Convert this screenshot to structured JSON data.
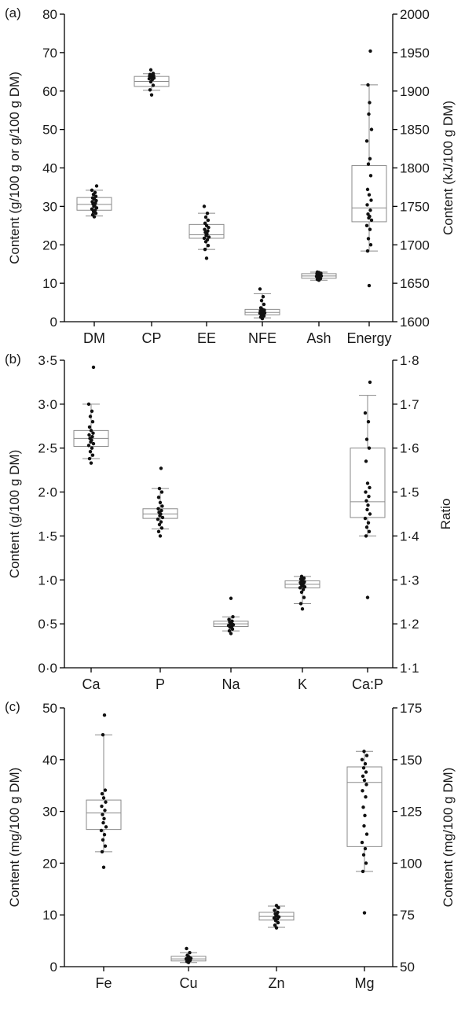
{
  "chart_data": [
    {
      "type": "box",
      "panel": "(a)",
      "left_axis": {
        "label": "Content (g/100 g or g/100 g DM)",
        "ylim": [
          0,
          80
        ],
        "ticks": [
          "0",
          "10",
          "20",
          "30",
          "40",
          "50",
          "60",
          "70",
          "80"
        ]
      },
      "right_axis": {
        "label": "Content (kJ/100 g DM)",
        "ylim": [
          1600,
          2000
        ],
        "ticks": [
          "1600",
          "1650",
          "1700",
          "1750",
          "1800",
          "1850",
          "1900",
          "1950",
          "2000"
        ]
      },
      "categories": [
        "DM",
        "CP",
        "EE",
        "NFE",
        "Ash",
        "Energy"
      ],
      "boxes": [
        {
          "category": "DM",
          "axis": "left",
          "min": 27.5,
          "q1": 29.0,
          "median": 30.5,
          "q3": 32.3,
          "max": 34.2,
          "points": [
            27.3,
            27.8,
            28.2,
            28.6,
            29.0,
            29.3,
            29.6,
            30.0,
            30.3,
            30.6,
            30.9,
            31.2,
            31.5,
            31.9,
            32.2,
            32.6,
            33.1,
            33.6,
            34.2,
            35.3
          ]
        },
        {
          "category": "CP",
          "axis": "left",
          "min": 60.2,
          "q1": 61.2,
          "median": 62.5,
          "q3": 63.8,
          "max": 64.5,
          "points": [
            59.0,
            60.3,
            61.5,
            62.4,
            63.0,
            63.2,
            63.4,
            63.5,
            63.6,
            63.7,
            63.8,
            63.9,
            64.0,
            64.1,
            64.3,
            64.6,
            65.5
          ]
        },
        {
          "category": "EE",
          "axis": "left",
          "min": 18.8,
          "q1": 21.7,
          "median": 22.6,
          "q3": 25.3,
          "max": 28.2,
          "points": [
            16.5,
            18.8,
            19.8,
            20.8,
            21.3,
            21.7,
            22.0,
            22.4,
            22.8,
            23.2,
            23.6,
            24.0,
            24.5,
            25.0,
            25.6,
            26.4,
            27.2,
            28.2,
            30.0
          ]
        },
        {
          "category": "NFE",
          "axis": "left",
          "min": 1.0,
          "q1": 1.8,
          "median": 2.4,
          "q3": 3.2,
          "max": 7.3,
          "points": [
            0.8,
            1.2,
            1.5,
            1.8,
            2.0,
            2.2,
            2.3,
            2.4,
            2.5,
            2.6,
            2.7,
            2.8,
            3.0,
            3.2,
            3.6,
            4.5,
            5.5,
            6.5,
            8.5
          ]
        },
        {
          "category": "Ash",
          "axis": "left",
          "min": 10.8,
          "q1": 11.3,
          "median": 11.9,
          "q3": 12.5,
          "max": 12.9,
          "points": [
            10.8,
            11.0,
            11.2,
            11.4,
            11.6,
            11.8,
            11.9,
            12.0,
            12.1,
            12.2,
            12.3,
            12.5,
            12.6,
            12.8,
            12.9
          ]
        },
        {
          "category": "Energy",
          "axis": "right",
          "min": 1692,
          "q1": 1730,
          "median": 1748,
          "q3": 1803,
          "max": 1908,
          "points": [
            1647,
            1692,
            1700,
            1708,
            1720,
            1725,
            1732,
            1735,
            1737,
            1740,
            1745,
            1752,
            1758,
            1765,
            1772,
            1790,
            1805,
            1812,
            1835,
            1850,
            1870,
            1885,
            1908,
            1952
          ]
        }
      ]
    },
    {
      "type": "box",
      "panel": "(b)",
      "left_axis": {
        "label": "Content (g/100 g DM)",
        "ylim": [
          0,
          3.5
        ],
        "ticks": [
          "0·0",
          "0·5",
          "1·0",
          "1·5",
          "2·0",
          "2·5",
          "3·0",
          "3·5"
        ]
      },
      "right_axis": {
        "label": "Ratio",
        "ylim": [
          1.1,
          1.8
        ],
        "ticks": [
          "1·1",
          "1·2",
          "1·3",
          "1·4",
          "1·5",
          "1·6",
          "1·7",
          "1·8"
        ]
      },
      "categories": [
        "Ca",
        "P",
        "Na",
        "K",
        "Ca:P"
      ],
      "boxes": [
        {
          "category": "Ca",
          "axis": "left",
          "min": 2.38,
          "q1": 2.52,
          "median": 2.61,
          "q3": 2.7,
          "max": 3.0,
          "points": [
            2.33,
            2.38,
            2.42,
            2.46,
            2.5,
            2.53,
            2.55,
            2.57,
            2.59,
            2.61,
            2.63,
            2.65,
            2.67,
            2.7,
            2.74,
            2.8,
            2.86,
            2.92,
            3.0,
            3.42
          ]
        },
        {
          "category": "P",
          "axis": "left",
          "min": 1.58,
          "q1": 1.7,
          "median": 1.75,
          "q3": 1.81,
          "max": 2.04,
          "points": [
            1.5,
            1.55,
            1.59,
            1.63,
            1.66,
            1.69,
            1.71,
            1.73,
            1.75,
            1.77,
            1.79,
            1.81,
            1.84,
            1.88,
            1.94,
            2.0,
            2.04,
            2.27
          ]
        },
        {
          "category": "Na",
          "axis": "left",
          "min": 0.42,
          "q1": 0.47,
          "median": 0.5,
          "q3": 0.53,
          "max": 0.58,
          "points": [
            0.39,
            0.42,
            0.44,
            0.46,
            0.47,
            0.48,
            0.49,
            0.5,
            0.51,
            0.52,
            0.53,
            0.55,
            0.58,
            0.79
          ]
        },
        {
          "category": "K",
          "axis": "left",
          "min": 0.73,
          "q1": 0.91,
          "median": 0.95,
          "q3": 0.99,
          "max": 1.04,
          "points": [
            0.67,
            0.73,
            0.8,
            0.86,
            0.89,
            0.91,
            0.92,
            0.93,
            0.94,
            0.95,
            0.96,
            0.97,
            0.98,
            0.99,
            1.01,
            1.02,
            1.04
          ]
        },
        {
          "category": "Ca:P",
          "axis": "right",
          "min": 1.4,
          "q1": 1.442,
          "median": 1.478,
          "q3": 1.6,
          "max": 1.72,
          "points": [
            1.26,
            1.4,
            1.41,
            1.42,
            1.43,
            1.44,
            1.45,
            1.46,
            1.47,
            1.48,
            1.49,
            1.5,
            1.51,
            1.52,
            1.57,
            1.6,
            1.62,
            1.66,
            1.68,
            1.75
          ]
        }
      ]
    },
    {
      "type": "box",
      "panel": "(c)",
      "left_axis": {
        "label": "Content (mg/100 g DM)",
        "ylim": [
          0,
          50
        ],
        "ticks": [
          "0",
          "10",
          "20",
          "30",
          "40",
          "50"
        ]
      },
      "right_axis": {
        "label": "Content (mg/100 g DM)",
        "ylim": [
          50,
          175
        ],
        "ticks": [
          "50",
          "75",
          "100",
          "125",
          "150",
          "175"
        ]
      },
      "categories": [
        "Fe",
        "Cu",
        "Zn",
        "Mg"
      ],
      "boxes": [
        {
          "category": "Fe",
          "axis": "left",
          "min": 22.2,
          "q1": 26.5,
          "median": 29.7,
          "q3": 32.2,
          "max": 44.8,
          "points": [
            19.2,
            22.2,
            23.3,
            24.5,
            25.5,
            26.3,
            27.0,
            27.8,
            28.6,
            29.4,
            30.2,
            31.0,
            31.8,
            32.6,
            33.4,
            34.1,
            44.8,
            48.6
          ]
        },
        {
          "category": "Cu",
          "axis": "left",
          "min": 0.8,
          "q1": 1.1,
          "median": 1.5,
          "q3": 2.0,
          "max": 2.7,
          "points": [
            0.8,
            1.0,
            1.2,
            1.3,
            1.4,
            1.5,
            1.6,
            1.7,
            1.9,
            2.2,
            2.7,
            3.5
          ]
        },
        {
          "category": "Zn",
          "axis": "left",
          "min": 7.6,
          "q1": 9.0,
          "median": 9.7,
          "q3": 10.5,
          "max": 11.7,
          "points": [
            7.5,
            8.0,
            8.5,
            8.9,
            9.2,
            9.4,
            9.6,
            9.8,
            10.0,
            10.2,
            10.5,
            10.9,
            11.4,
            11.8
          ]
        },
        {
          "category": "Mg",
          "axis": "right",
          "min": 96,
          "q1": 108,
          "median": 139,
          "q3": 146.5,
          "max": 154,
          "points": [
            76,
            96,
            100,
            104,
            107,
            110,
            114,
            118,
            123,
            127,
            132,
            135,
            138,
            140,
            142,
            144,
            146,
            148,
            150,
            152,
            154
          ]
        }
      ]
    }
  ]
}
